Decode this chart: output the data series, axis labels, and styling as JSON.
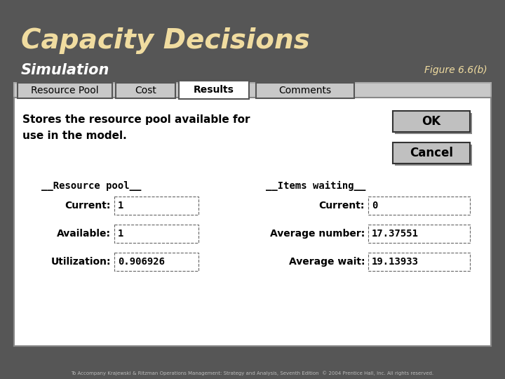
{
  "title": "Capacity Decisions",
  "subtitle": "Simulation",
  "figure_label": "Figure 6.6(b)",
  "bg_color": "#565656",
  "dialog_bg": "#c8c8c8",
  "dialog_inner_bg": "#ffffff",
  "tab_labels": [
    "Resource Pool",
    "Cost",
    "Results",
    "Comments"
  ],
  "active_tab": "Results",
  "description_text": "Stores the resource pool available for\nuse in the model.",
  "resource_pool_header": "__Resource pool__",
  "items_waiting_header": "__Items waiting__",
  "rows": [
    {
      "label": "Current:",
      "value1": "1",
      "label2": "Current:",
      "value2": "0"
    },
    {
      "label": "Available:",
      "value1": "1",
      "label2": "Average number:",
      "value2": "17.37551"
    },
    {
      "label": "Utilization:",
      "value1": "0.906926",
      "label2": "Average wait:",
      "value2": "19.13933"
    }
  ],
  "ok_button": "OK",
  "cancel_button": "Cancel",
  "footer_text": "To Accompany Krajewski & Ritzman Operations Management: Strategy and Analysis, Seventh Edition  © 2004 Prentice Hall, Inc. All rights reserved.",
  "title_color": "#f0dca0",
  "subtitle_color": "#ffffff",
  "figure_label_color": "#f0dca0"
}
